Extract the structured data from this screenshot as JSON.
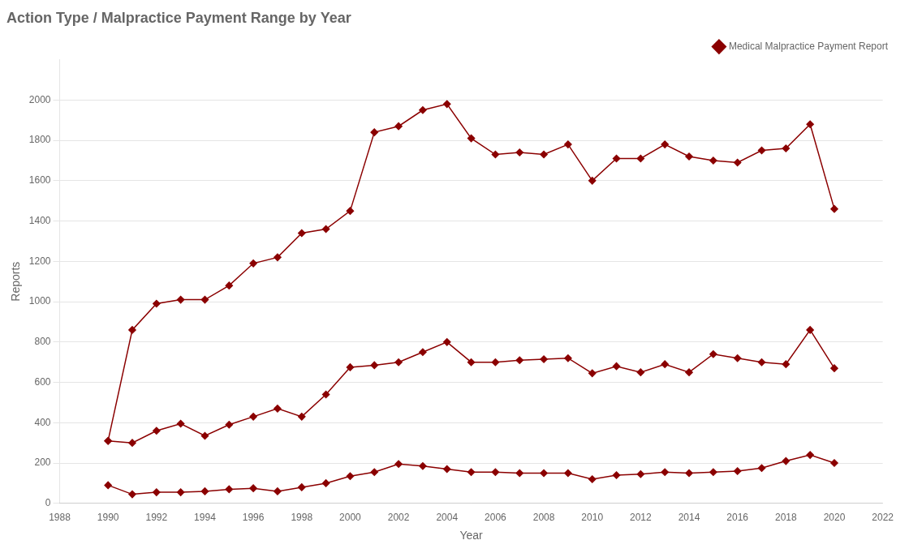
{
  "chart_data": {
    "type": "line",
    "title": "Action Type / Malpractice Payment Range by Year",
    "xlabel": "Year",
    "ylabel": "Reports",
    "x": [
      1990,
      1991,
      1992,
      1993,
      1994,
      1995,
      1996,
      1997,
      1998,
      1999,
      2000,
      2001,
      2002,
      2003,
      2004,
      2005,
      2006,
      2007,
      2008,
      2009,
      2010,
      2011,
      2012,
      2013,
      2014,
      2015,
      2016,
      2017,
      2018,
      2019,
      2020
    ],
    "series": [
      {
        "name": "Medical Malpractice Payment Report",
        "color": "#8B0000",
        "marker": "diamond",
        "values": [
          310,
          860,
          990,
          1010,
          1010,
          1080,
          1190,
          1220,
          1340,
          1360,
          1450,
          1840,
          1870,
          1950,
          1980,
          1810,
          1730,
          1740,
          1730,
          1780,
          1600,
          1710,
          1710,
          1780,
          1720,
          1700,
          1690,
          1750,
          1760,
          1880,
          1460
        ]
      },
      {
        "color": "#8B0000",
        "marker": "diamond",
        "values": [
          310,
          300,
          360,
          395,
          335,
          390,
          430,
          470,
          430,
          540,
          675,
          685,
          700,
          750,
          800,
          700,
          700,
          710,
          715,
          720,
          645,
          680,
          650,
          690,
          650,
          740,
          720,
          700,
          690,
          860,
          670
        ]
      },
      {
        "color": "#8B0000",
        "marker": "diamond",
        "values": [
          90,
          45,
          55,
          55,
          60,
          70,
          75,
          60,
          80,
          100,
          135,
          155,
          195,
          185,
          170,
          155,
          155,
          150,
          150,
          150,
          120,
          140,
          145,
          155,
          150,
          155,
          160,
          175,
          210,
          240,
          200
        ]
      }
    ],
    "xlim": [
      1988,
      2022
    ],
    "ylim": [
      0,
      2200
    ],
    "xticks": [
      1988,
      1990,
      1992,
      1994,
      1996,
      1998,
      2000,
      2002,
      2004,
      2006,
      2008,
      2010,
      2012,
      2014,
      2016,
      2018,
      2020,
      2022
    ],
    "yticks": [
      0,
      200,
      400,
      600,
      800,
      1000,
      1200,
      1400,
      1600,
      1800,
      2000
    ],
    "grid": "y",
    "legend": "top"
  }
}
